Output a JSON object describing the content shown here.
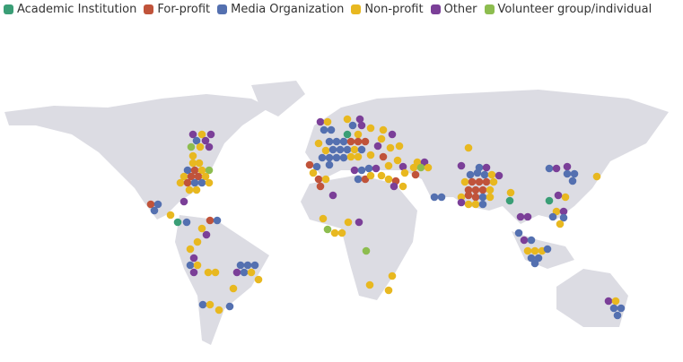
{
  "legend": [
    {
      "label": "Academic Institution",
      "color": "#3a9e76"
    },
    {
      "label": "For-profit",
      "color": "#c0533a"
    },
    {
      "label": "Media Organization",
      "color": "#5470b0"
    },
    {
      "label": "Non-profit",
      "color": "#e8b820"
    },
    {
      "label": "Other",
      "color": "#7b3f98"
    },
    {
      "label": "Volunteer group/individual",
      "color": "#8dbd4f"
    }
  ]
}
